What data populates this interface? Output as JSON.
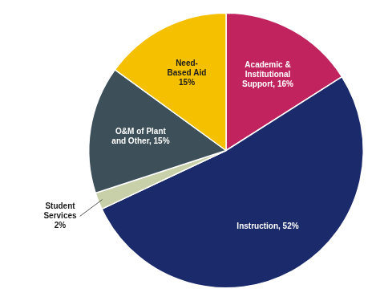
{
  "chart_data": {
    "type": "pie",
    "categories": [
      "Academic &\nInstitutional\nSupport, 16%",
      "Instruction, 52%",
      "Student\nServices\n2%",
      "O&M of Plant\nand Other, 15%",
      "Need-\nBased Aid\n15%"
    ],
    "values": [
      16,
      52,
      2,
      15,
      15
    ],
    "colors": [
      "#C0235E",
      "#1B2A6B",
      "#C8D0AA",
      "#3D5059",
      "#F5C000"
    ]
  }
}
